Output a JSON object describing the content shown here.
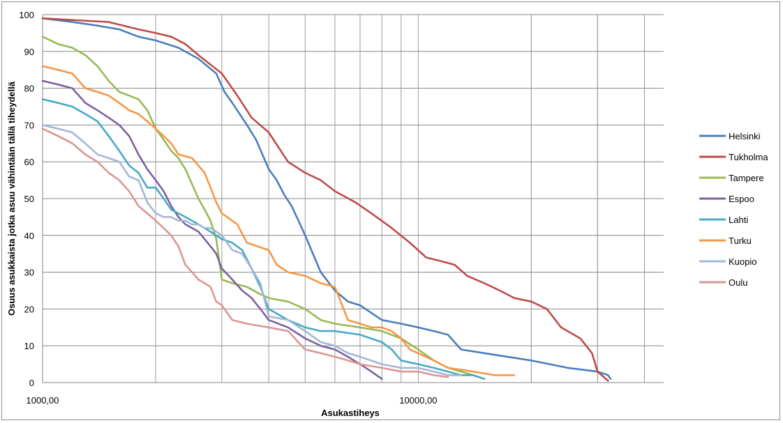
{
  "chart_data": {
    "type": "line",
    "title": "",
    "xlabel": "Asukastiheys",
    "ylabel": "Osuus asukkaista jotka asuu vähintään tällä tiheydellä",
    "x_scale": "log",
    "xlim": [
      1000,
      45000
    ],
    "ylim": [
      0,
      100
    ],
    "x_tick_labels": [
      "1000,00",
      "10000,00"
    ],
    "y_ticks": [
      0,
      10,
      20,
      30,
      40,
      50,
      60,
      70,
      80,
      90,
      100
    ],
    "grid": true,
    "legend_position": "right",
    "colors": {
      "Helsinki": "#4a7ebb",
      "Tukholma": "#be4b48",
      "Tampere": "#98b954",
      "Espoo": "#7d60a0",
      "Lahti": "#46aac5",
      "Turku": "#f79646",
      "Kuopio": "#a5b6d6",
      "Oulu": "#d99694"
    },
    "series": [
      {
        "name": "Helsinki",
        "x": [
          1000,
          1200,
          1400,
          1600,
          1800,
          2000,
          2300,
          2600,
          2900,
          3050,
          3200,
          3500,
          3700,
          4000,
          4200,
          4400,
          4600,
          4800,
          5000,
          5500,
          6000,
          6500,
          7000,
          8000,
          9000,
          10000,
          11000,
          12000,
          13000,
          15000,
          20000,
          25000,
          30000,
          32000,
          32500
        ],
        "y": [
          99,
          98,
          97,
          96,
          94,
          93,
          91,
          88,
          84,
          79,
          76,
          70,
          66,
          58,
          55,
          51,
          48,
          44,
          40,
          30,
          25,
          22,
          21,
          17,
          16,
          15,
          14,
          13,
          9,
          8,
          6,
          4,
          3,
          2,
          1
        ]
      },
      {
        "name": "Tukholma",
        "x": [
          1000,
          1500,
          1800,
          2000,
          2200,
          2400,
          2600,
          3000,
          3300,
          3600,
          4000,
          4500,
          5000,
          5500,
          6000,
          6800,
          7500,
          8500,
          9500,
          10500,
          11500,
          12500,
          13500,
          15000,
          16500,
          18000,
          20000,
          22000,
          24000,
          27000,
          29000,
          30000,
          32000
        ],
        "y": [
          99,
          98,
          96,
          95,
          94,
          92,
          89,
          84,
          78,
          72,
          68,
          60,
          57,
          55,
          52,
          49,
          46,
          42,
          38,
          34,
          33,
          32,
          29,
          27,
          25,
          23,
          22,
          20,
          15,
          12,
          8,
          3,
          0.5
        ]
      },
      {
        "name": "Tampere",
        "x": [
          1000,
          1100,
          1200,
          1300,
          1400,
          1500,
          1600,
          1700,
          1800,
          1900,
          2000,
          2100,
          2200,
          2300,
          2400,
          2600,
          2700,
          2800,
          2900,
          3000,
          3200,
          3500,
          3800,
          4000,
          4500,
          5000,
          5500,
          6000,
          7000,
          8000,
          9000,
          10000,
          11000,
          12000,
          13000,
          14000,
          15000
        ],
        "y": [
          94,
          92,
          91,
          89,
          86,
          82,
          79,
          78,
          77,
          74,
          69,
          66,
          63,
          61,
          58,
          50,
          47,
          44,
          39,
          28,
          27,
          26,
          24,
          23,
          22,
          20,
          17,
          16,
          15,
          14,
          12,
          9,
          6,
          4,
          3,
          2,
          1
        ]
      },
      {
        "name": "Espoo",
        "x": [
          1000,
          1100,
          1200,
          1300,
          1400,
          1500,
          1600,
          1700,
          1800,
          1900,
          2000,
          2100,
          2200,
          2300,
          2400,
          2500,
          2600,
          2700,
          2800,
          2900,
          3000,
          3200,
          3400,
          3600,
          3800,
          4000,
          4500,
          5000,
          5500,
          6000,
          6500,
          7000,
          7500,
          8000
        ],
        "y": [
          82,
          81,
          80,
          76,
          74,
          72,
          70,
          67,
          62,
          58,
          55,
          52,
          48,
          45,
          43,
          42,
          41,
          39,
          37,
          35,
          31,
          28,
          25,
          23,
          20,
          17,
          15,
          12,
          10,
          9,
          7,
          5,
          3,
          1
        ]
      },
      {
        "name": "Lahti",
        "x": [
          1000,
          1100,
          1200,
          1300,
          1400,
          1500,
          1600,
          1700,
          1800,
          1900,
          2000,
          2100,
          2200,
          2400,
          2600,
          2800,
          3000,
          3200,
          3400,
          3600,
          3800,
          4000,
          4500,
          5000,
          5500,
          6000,
          7000,
          8000,
          8500,
          9000,
          10000,
          11000,
          12000,
          13000,
          14000,
          15000
        ],
        "y": [
          77,
          76,
          75,
          73,
          71,
          67,
          63,
          59,
          57,
          53,
          53,
          50,
          47,
          45,
          43,
          41,
          39,
          38,
          36,
          31,
          26,
          20,
          17,
          15,
          14,
          14,
          13,
          11,
          9,
          6,
          5,
          4,
          3,
          2,
          2,
          1
        ]
      },
      {
        "name": "Turku",
        "x": [
          1000,
          1100,
          1200,
          1300,
          1400,
          1500,
          1600,
          1700,
          1800,
          1900,
          2000,
          2100,
          2200,
          2300,
          2500,
          2700,
          2800,
          2900,
          3000,
          3300,
          3500,
          4000,
          4200,
          4500,
          5000,
          5500,
          6000,
          6500,
          7000,
          7500,
          8000,
          8500,
          9000,
          9500,
          10000,
          11000,
          12000,
          14000,
          16000,
          18000
        ],
        "y": [
          86,
          85,
          84,
          80,
          79,
          78,
          76,
          74,
          73,
          71,
          69,
          67,
          65,
          62,
          61,
          57,
          53,
          49,
          46,
          43,
          38,
          36,
          32,
          30,
          29,
          27,
          26,
          17,
          16,
          15,
          15,
          14,
          12,
          9,
          8,
          6,
          4,
          3,
          2,
          2
        ]
      },
      {
        "name": "Kuopio",
        "x": [
          1000,
          1100,
          1200,
          1300,
          1400,
          1500,
          1600,
          1700,
          1800,
          1900,
          2000,
          2100,
          2200,
          2300,
          2400,
          2500,
          2600,
          2700,
          2800,
          2900,
          3000,
          3200,
          3400,
          3600,
          3800,
          4000,
          4500,
          5000,
          5500,
          6000,
          6500,
          7000,
          8000,
          9000,
          10000,
          11000,
          12000,
          13000
        ],
        "y": [
          70,
          69,
          68,
          65,
          62,
          61,
          60,
          56,
          55,
          49,
          46,
          45,
          45,
          44,
          44,
          43,
          43,
          42,
          42,
          41,
          40,
          36,
          35,
          31,
          27,
          18,
          17,
          14,
          11,
          10,
          8,
          7,
          5,
          4,
          4,
          3,
          2,
          2
        ]
      },
      {
        "name": "Oulu",
        "x": [
          1000,
          1100,
          1200,
          1300,
          1400,
          1500,
          1600,
          1700,
          1800,
          1900,
          2000,
          2100,
          2200,
          2300,
          2400,
          2500,
          2600,
          2700,
          2800,
          2900,
          3000,
          3200,
          3500,
          4000,
          4500,
          5000,
          5500,
          6000,
          6500,
          7000,
          8000,
          9000,
          10000,
          11000,
          12000
        ],
        "y": [
          69,
          67,
          65,
          62,
          60,
          57,
          55,
          52,
          48,
          46,
          44,
          42,
          40,
          37,
          32,
          30,
          28,
          27,
          26,
          22,
          21,
          17,
          16,
          15,
          14,
          9,
          8,
          7,
          6,
          5,
          4,
          3,
          3,
          2,
          1.5
        ]
      }
    ]
  }
}
